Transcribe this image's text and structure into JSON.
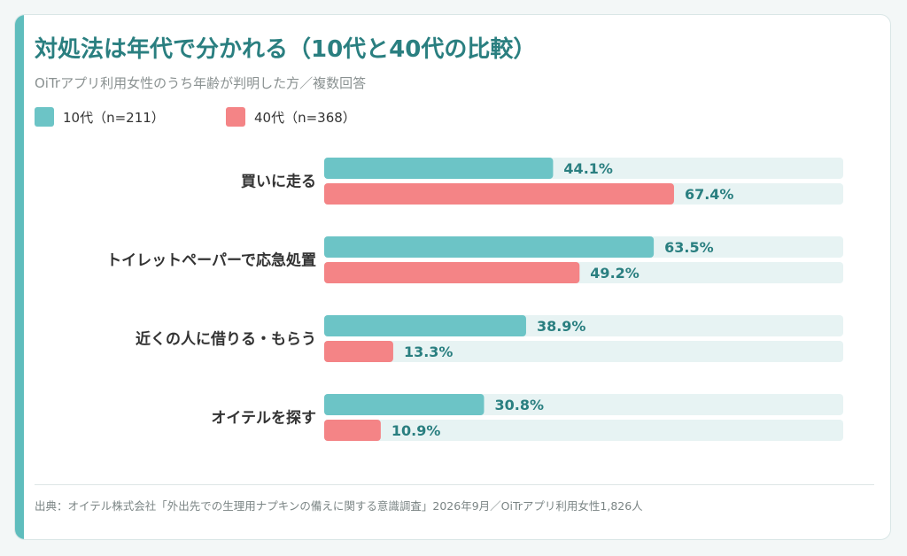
{
  "header": {
    "title": "対処法は年代で分かれる（10代と40代の比較）",
    "subtitle": "OiTrアプリ利用女性のうち年齢が判明した方／複数回答"
  },
  "colors": {
    "accent": "#5fbdbd",
    "title": "#2a7f80",
    "teen": "#6cc4c6",
    "forties": "#f48486",
    "track": "#e7f3f3",
    "value_label": "#2a7f80"
  },
  "chart_data": {
    "type": "bar",
    "orientation": "horizontal",
    "categories": [
      "買いに走る",
      "トイレットペーパーで応急処置",
      "近くの人に借りる・もらう",
      "オイテルを探す"
    ],
    "series": [
      {
        "name": "10代（n=211）",
        "values": [
          44.1,
          63.5,
          38.9,
          30.8
        ],
        "labels": [
          "44.1%",
          "63.5%",
          "38.9%",
          "30.8%"
        ]
      },
      {
        "name": "40代（n=368）",
        "values": [
          67.4,
          49.2,
          13.3,
          10.9
        ],
        "labels": [
          "67.4%",
          "49.2%",
          "13.3%",
          "10.9%"
        ]
      }
    ],
    "xlim": [
      0,
      100
    ],
    "unit": "%",
    "legend": "top-left"
  },
  "footer": {
    "source": "出典：オイテル株式会社「外出先での生理用ナプキンの備えに関する意識調査」2026年9月／OiTrアプリ利用女性1,826人"
  }
}
